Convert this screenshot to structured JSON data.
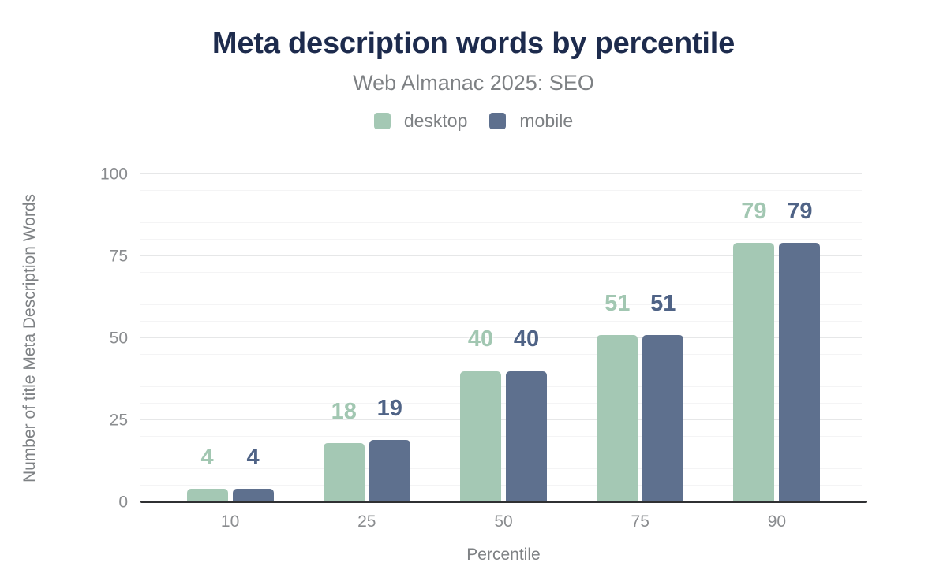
{
  "chart_data": {
    "type": "bar",
    "title": "Meta description words by percentile",
    "subtitle": "Web Almanac 2025: SEO",
    "xlabel": "Percentile",
    "ylabel": "Number of title Meta Description Words",
    "categories": [
      "10",
      "25",
      "50",
      "75",
      "90"
    ],
    "series": [
      {
        "name": "desktop",
        "color": "#a4c8b4",
        "label_color": "#a2c7b2",
        "values": [
          4,
          18,
          40,
          51,
          79
        ]
      },
      {
        "name": "mobile",
        "color": "#5e708e",
        "label_color": "#4f6386",
        "values": [
          4,
          19,
          40,
          51,
          79
        ]
      }
    ],
    "ylim": [
      0,
      100
    ],
    "yticks": [
      0,
      25,
      50,
      75,
      100
    ],
    "minor_grid_step": 5,
    "major_grid_step": 25,
    "grid": true,
    "legend_position": "top-center"
  },
  "colors": {
    "title": "#1d2b4d",
    "muted_text": "#7e8184",
    "tick_text": "#8a8c8f",
    "axis_line": "#2f3032",
    "grid_major": "#e6e7e8",
    "grid_minor": "#f4f4f5",
    "background": "#ffffff"
  }
}
